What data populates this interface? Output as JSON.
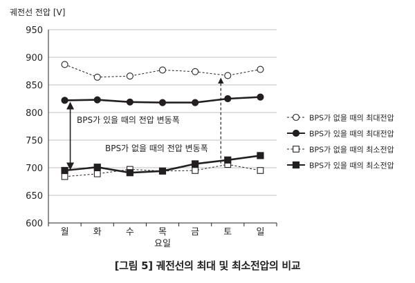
{
  "chart_data": {
    "type": "line",
    "ylabel": "궤전선 전압 [V]",
    "xlabel": "요일",
    "categories": [
      "월",
      "화",
      "수",
      "목",
      "금",
      "토",
      "일"
    ],
    "ylim": [
      600,
      950
    ],
    "yticks": [
      600,
      650,
      700,
      750,
      800,
      850,
      900,
      950
    ],
    "grid": true,
    "legend_position": "right",
    "series": [
      {
        "name": "BPS가 없을 때의 최대전압",
        "marker": "open-circle",
        "line": "dashed",
        "values": [
          887,
          864,
          866,
          877,
          874,
          867,
          878
        ]
      },
      {
        "name": "BPS가 있을 때의 최대전압",
        "marker": "filled-circle",
        "line": "solid",
        "values": [
          822,
          823,
          819,
          818,
          818,
          825,
          828
        ]
      },
      {
        "name": "BPS가 없을 때의 최소전압",
        "marker": "open-square",
        "line": "dashed",
        "values": [
          684,
          689,
          697,
          694,
          695,
          706,
          695
        ]
      },
      {
        "name": "BPS가 있을 때의 최소전압",
        "marker": "filled-square",
        "line": "solid",
        "values": [
          695,
          701,
          691,
          694,
          707,
          714,
          722
        ]
      }
    ],
    "annotations": [
      {
        "text": "BPS가 있을 때의 전압 변동폭",
        "category": "월",
        "from": 818,
        "to": 697,
        "arrow_style": "solid"
      },
      {
        "text": "BPS가 없을 때의 전압 변동폭",
        "category": "토",
        "from": 708,
        "to": 862,
        "arrow_style": "dashed"
      }
    ]
  },
  "caption": "[그림 5] 궤전선의 최대 및 최소전압의 비교",
  "colors": {
    "ink": "#231f20",
    "grid": "#bfbfbf"
  }
}
